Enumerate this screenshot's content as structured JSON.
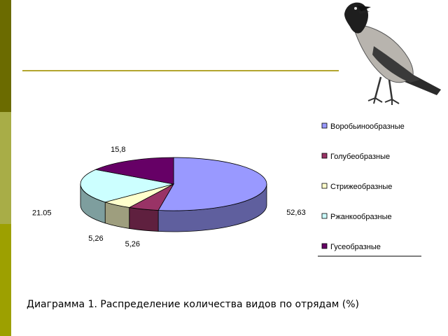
{
  "colors": {
    "side_bar_top": "#6b6b00",
    "side_bar_mid": "#a8ad47",
    "side_bar_bottom": "#9da000",
    "title_rule": "#b3a52e"
  },
  "chart_data": {
    "type": "pie",
    "style": "3d",
    "categories": [
      "Воробьинообразные",
      "Голубеобразные",
      "Стрижеобразные",
      "Ржанкообразные",
      "Гусеобразные"
    ],
    "values": [
      52.63,
      5.26,
      5.26,
      21.05,
      15.8
    ],
    "data_labels": [
      "52,63",
      "5,26",
      "5,26",
      "21.05",
      "15,8"
    ],
    "colors": [
      "#9999ff",
      "#993366",
      "#ffffcc",
      "#ccffff",
      "#660066"
    ],
    "legend": "right"
  },
  "caption": {
    "text": "Диаграмма 1. Распределение количества видов по отрядам (%)"
  }
}
